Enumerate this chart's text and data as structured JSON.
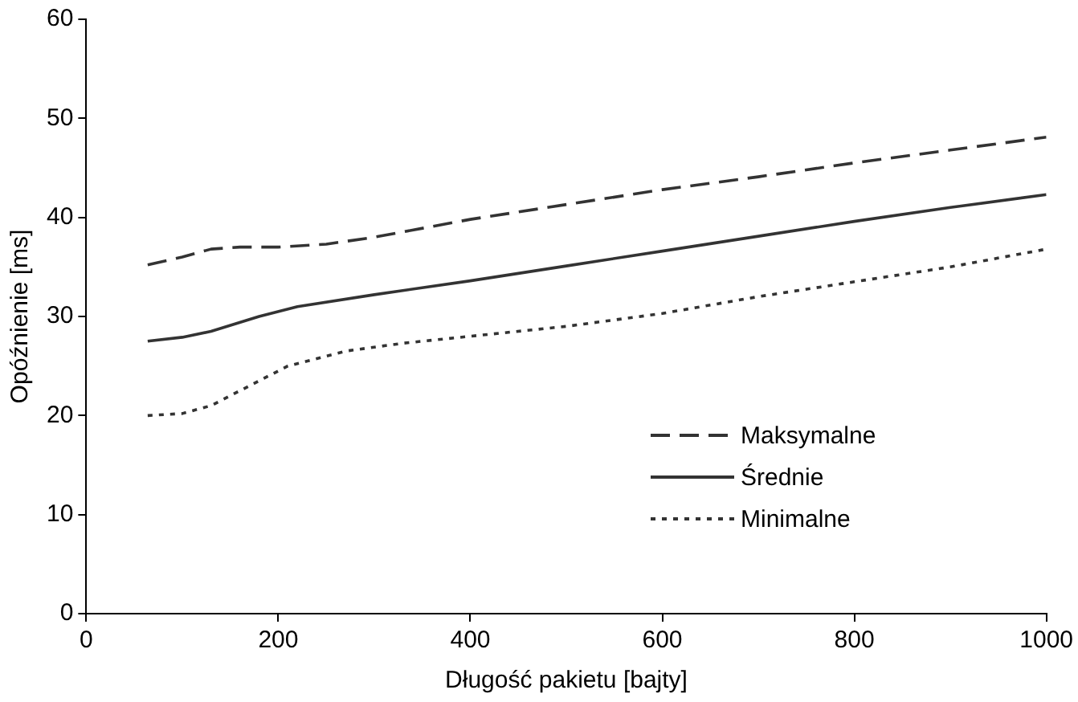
{
  "chart_data": {
    "type": "line",
    "xlabel": "Długość pakietu [bajty]",
    "ylabel": "Opóźnienie [ms]",
    "xlim": [
      0,
      1000
    ],
    "xticks": [
      0,
      200,
      400,
      600,
      800,
      1000
    ],
    "ylim": [
      0,
      60
    ],
    "yticks": [
      0,
      10,
      20,
      30,
      40,
      50,
      60
    ],
    "grid": false,
    "legend": "bottom right",
    "marker": "none",
    "series": [
      {
        "name": "Maksymalne",
        "color": "#333333",
        "line_style": "dashed",
        "x": [
          64,
          100,
          130,
          160,
          200,
          250,
          300,
          400,
          500,
          600,
          700,
          800,
          900,
          1000
        ],
        "values": [
          35.2,
          36,
          36.8,
          37,
          37,
          37.3,
          38,
          39.8,
          41.3,
          42.8,
          44.1,
          45.5,
          46.8,
          48.1
        ]
      },
      {
        "name": "Średnie",
        "color": "#333333",
        "line_style": "solid",
        "x": [
          64,
          100,
          130,
          180,
          220,
          300,
          400,
          500,
          600,
          700,
          800,
          900,
          1000
        ],
        "values": [
          27.5,
          27.9,
          28.5,
          30,
          31,
          32.2,
          33.6,
          35.1,
          36.6,
          38.1,
          39.6,
          41,
          42.3
        ]
      },
      {
        "name": "Minimalne",
        "color": "#333333",
        "line_style": "dotted",
        "x": [
          64,
          100,
          130,
          170,
          210,
          270,
          330,
          400,
          500,
          600,
          700,
          800,
          900,
          1000
        ],
        "values": [
          20,
          20.2,
          21,
          23,
          25,
          26.5,
          27.3,
          28,
          29,
          30.3,
          32,
          33.5,
          35,
          36.8
        ]
      }
    ]
  }
}
